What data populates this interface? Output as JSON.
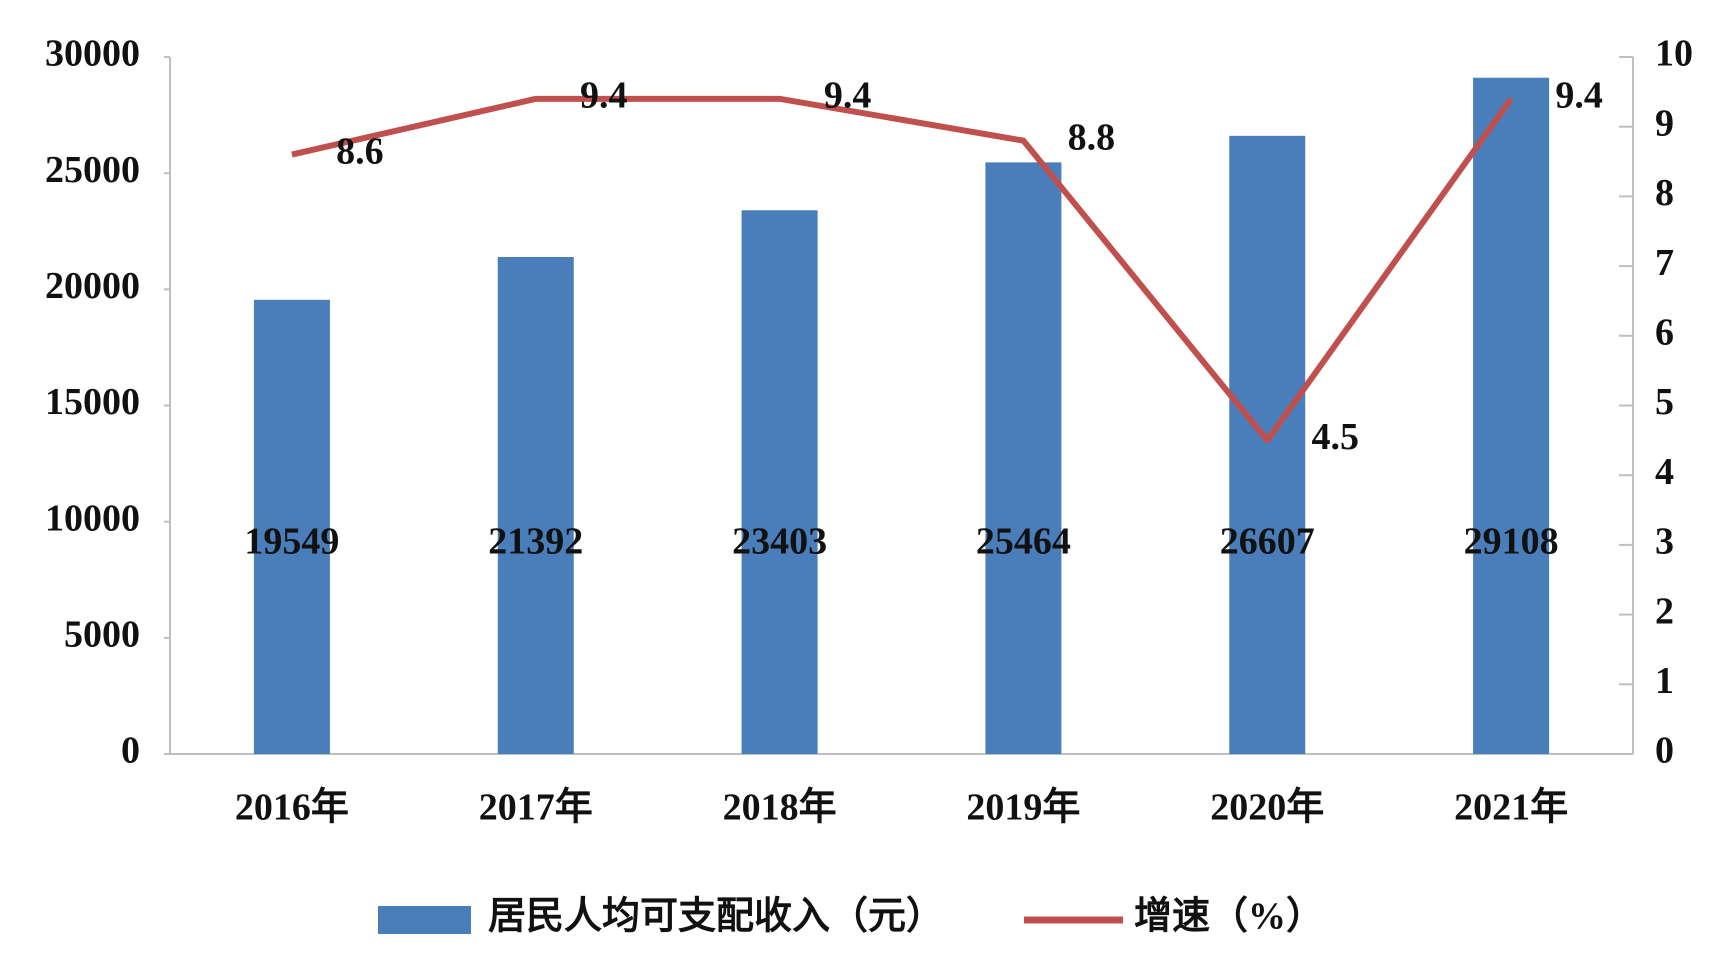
{
  "chart_data": {
    "type": "combo",
    "categories": [
      "2016年",
      "2017年",
      "2018年",
      "2019年",
      "2020年",
      "2021年"
    ],
    "series": [
      {
        "name": "居民人均可支配收入（元）",
        "type": "bar",
        "color": "#4a7ebb",
        "values": [
          19549,
          21392,
          23403,
          25464,
          26607,
          29108
        ]
      },
      {
        "name": "增速（%）",
        "type": "line",
        "axis": "y2",
        "color": "#c0504d",
        "values": [
          8.6,
          9.4,
          9.4,
          8.8,
          4.5,
          9.4
        ]
      }
    ],
    "ylim": [
      0,
      30000
    ],
    "yticks": [
      0,
      5000,
      10000,
      15000,
      20000,
      25000,
      30000
    ],
    "y2lim": [
      0,
      10
    ],
    "y2ticks": [
      0,
      1,
      2,
      3,
      4,
      5,
      6,
      7,
      8,
      9,
      10
    ],
    "grid": false,
    "legend": "bottom"
  }
}
